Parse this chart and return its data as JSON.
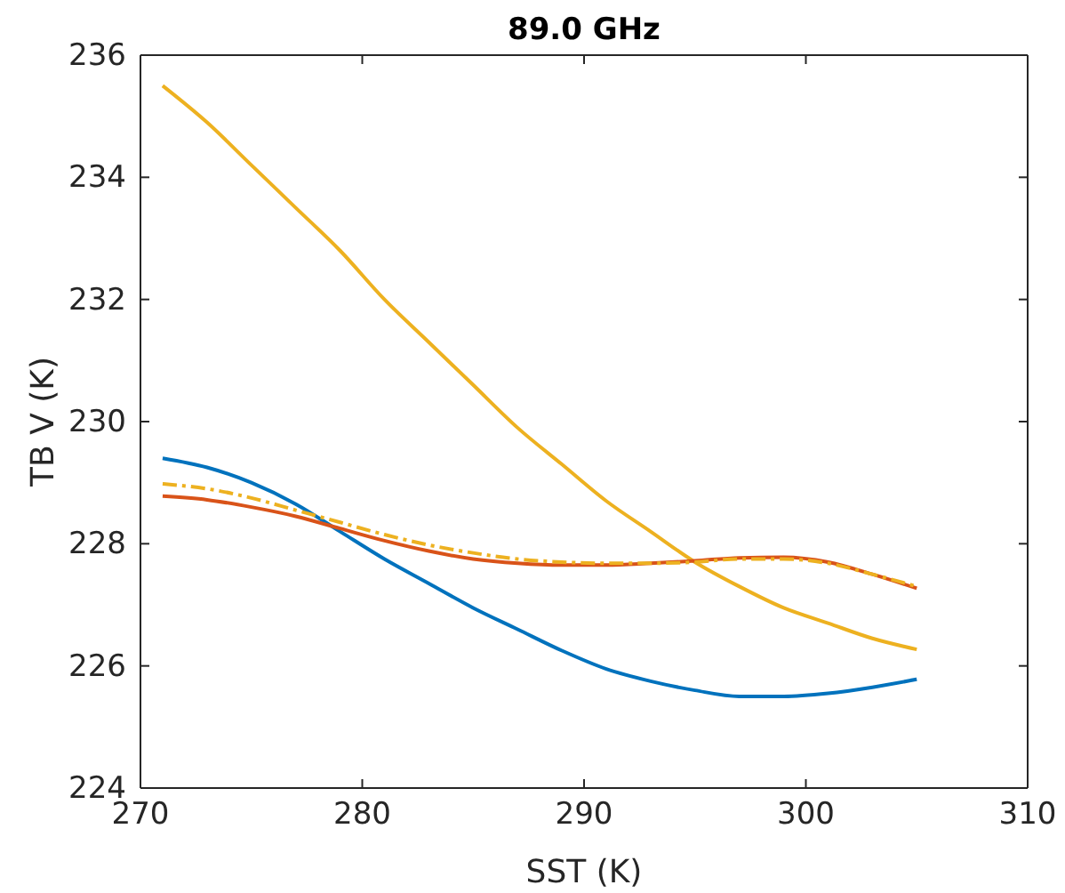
{
  "chart_data": {
    "type": "line",
    "title": "89.0 GHz",
    "xlabel": "SST (K)",
    "ylabel": "TB V (K)",
    "x": [
      271,
      273,
      275,
      277,
      279,
      281,
      283,
      285,
      287,
      289,
      291,
      293,
      295,
      297,
      299,
      301,
      303,
      305
    ],
    "series": [
      {
        "color": "#edb120",
        "line_style": "solid",
        "values": [
          235.5,
          234.9,
          234.2,
          233.5,
          232.8,
          232.0,
          231.3,
          230.6,
          229.9,
          229.3,
          228.7,
          228.2,
          227.7,
          227.3,
          226.95,
          226.7,
          226.45,
          226.27
        ]
      },
      {
        "color": "#0072bd",
        "line_style": "solid",
        "values": [
          229.4,
          229.25,
          229.0,
          228.65,
          228.2,
          227.75,
          227.35,
          226.95,
          226.6,
          226.25,
          225.95,
          225.75,
          225.6,
          225.5,
          225.5,
          225.55,
          225.65,
          225.78
        ]
      },
      {
        "color": "#d95319",
        "line_style": "solid",
        "values": [
          228.78,
          228.72,
          228.6,
          228.45,
          228.25,
          228.05,
          227.88,
          227.75,
          227.68,
          227.65,
          227.65,
          227.68,
          227.72,
          227.77,
          227.78,
          227.7,
          227.5,
          227.27
        ]
      },
      {
        "color": "#edb120",
        "line_style": "dashed",
        "values": [
          228.98,
          228.9,
          228.75,
          228.55,
          228.35,
          228.15,
          227.98,
          227.85,
          227.75,
          227.7,
          227.68,
          227.68,
          227.7,
          227.75,
          227.75,
          227.68,
          227.5,
          227.3
        ]
      }
    ],
    "xlim": [
      270,
      310
    ],
    "xticks": [
      270,
      280,
      290,
      300,
      310
    ],
    "ylim": [
      224,
      236
    ],
    "yticks": [
      224,
      226,
      228,
      230,
      232,
      234,
      236
    ],
    "grid": false,
    "marker": "none"
  }
}
